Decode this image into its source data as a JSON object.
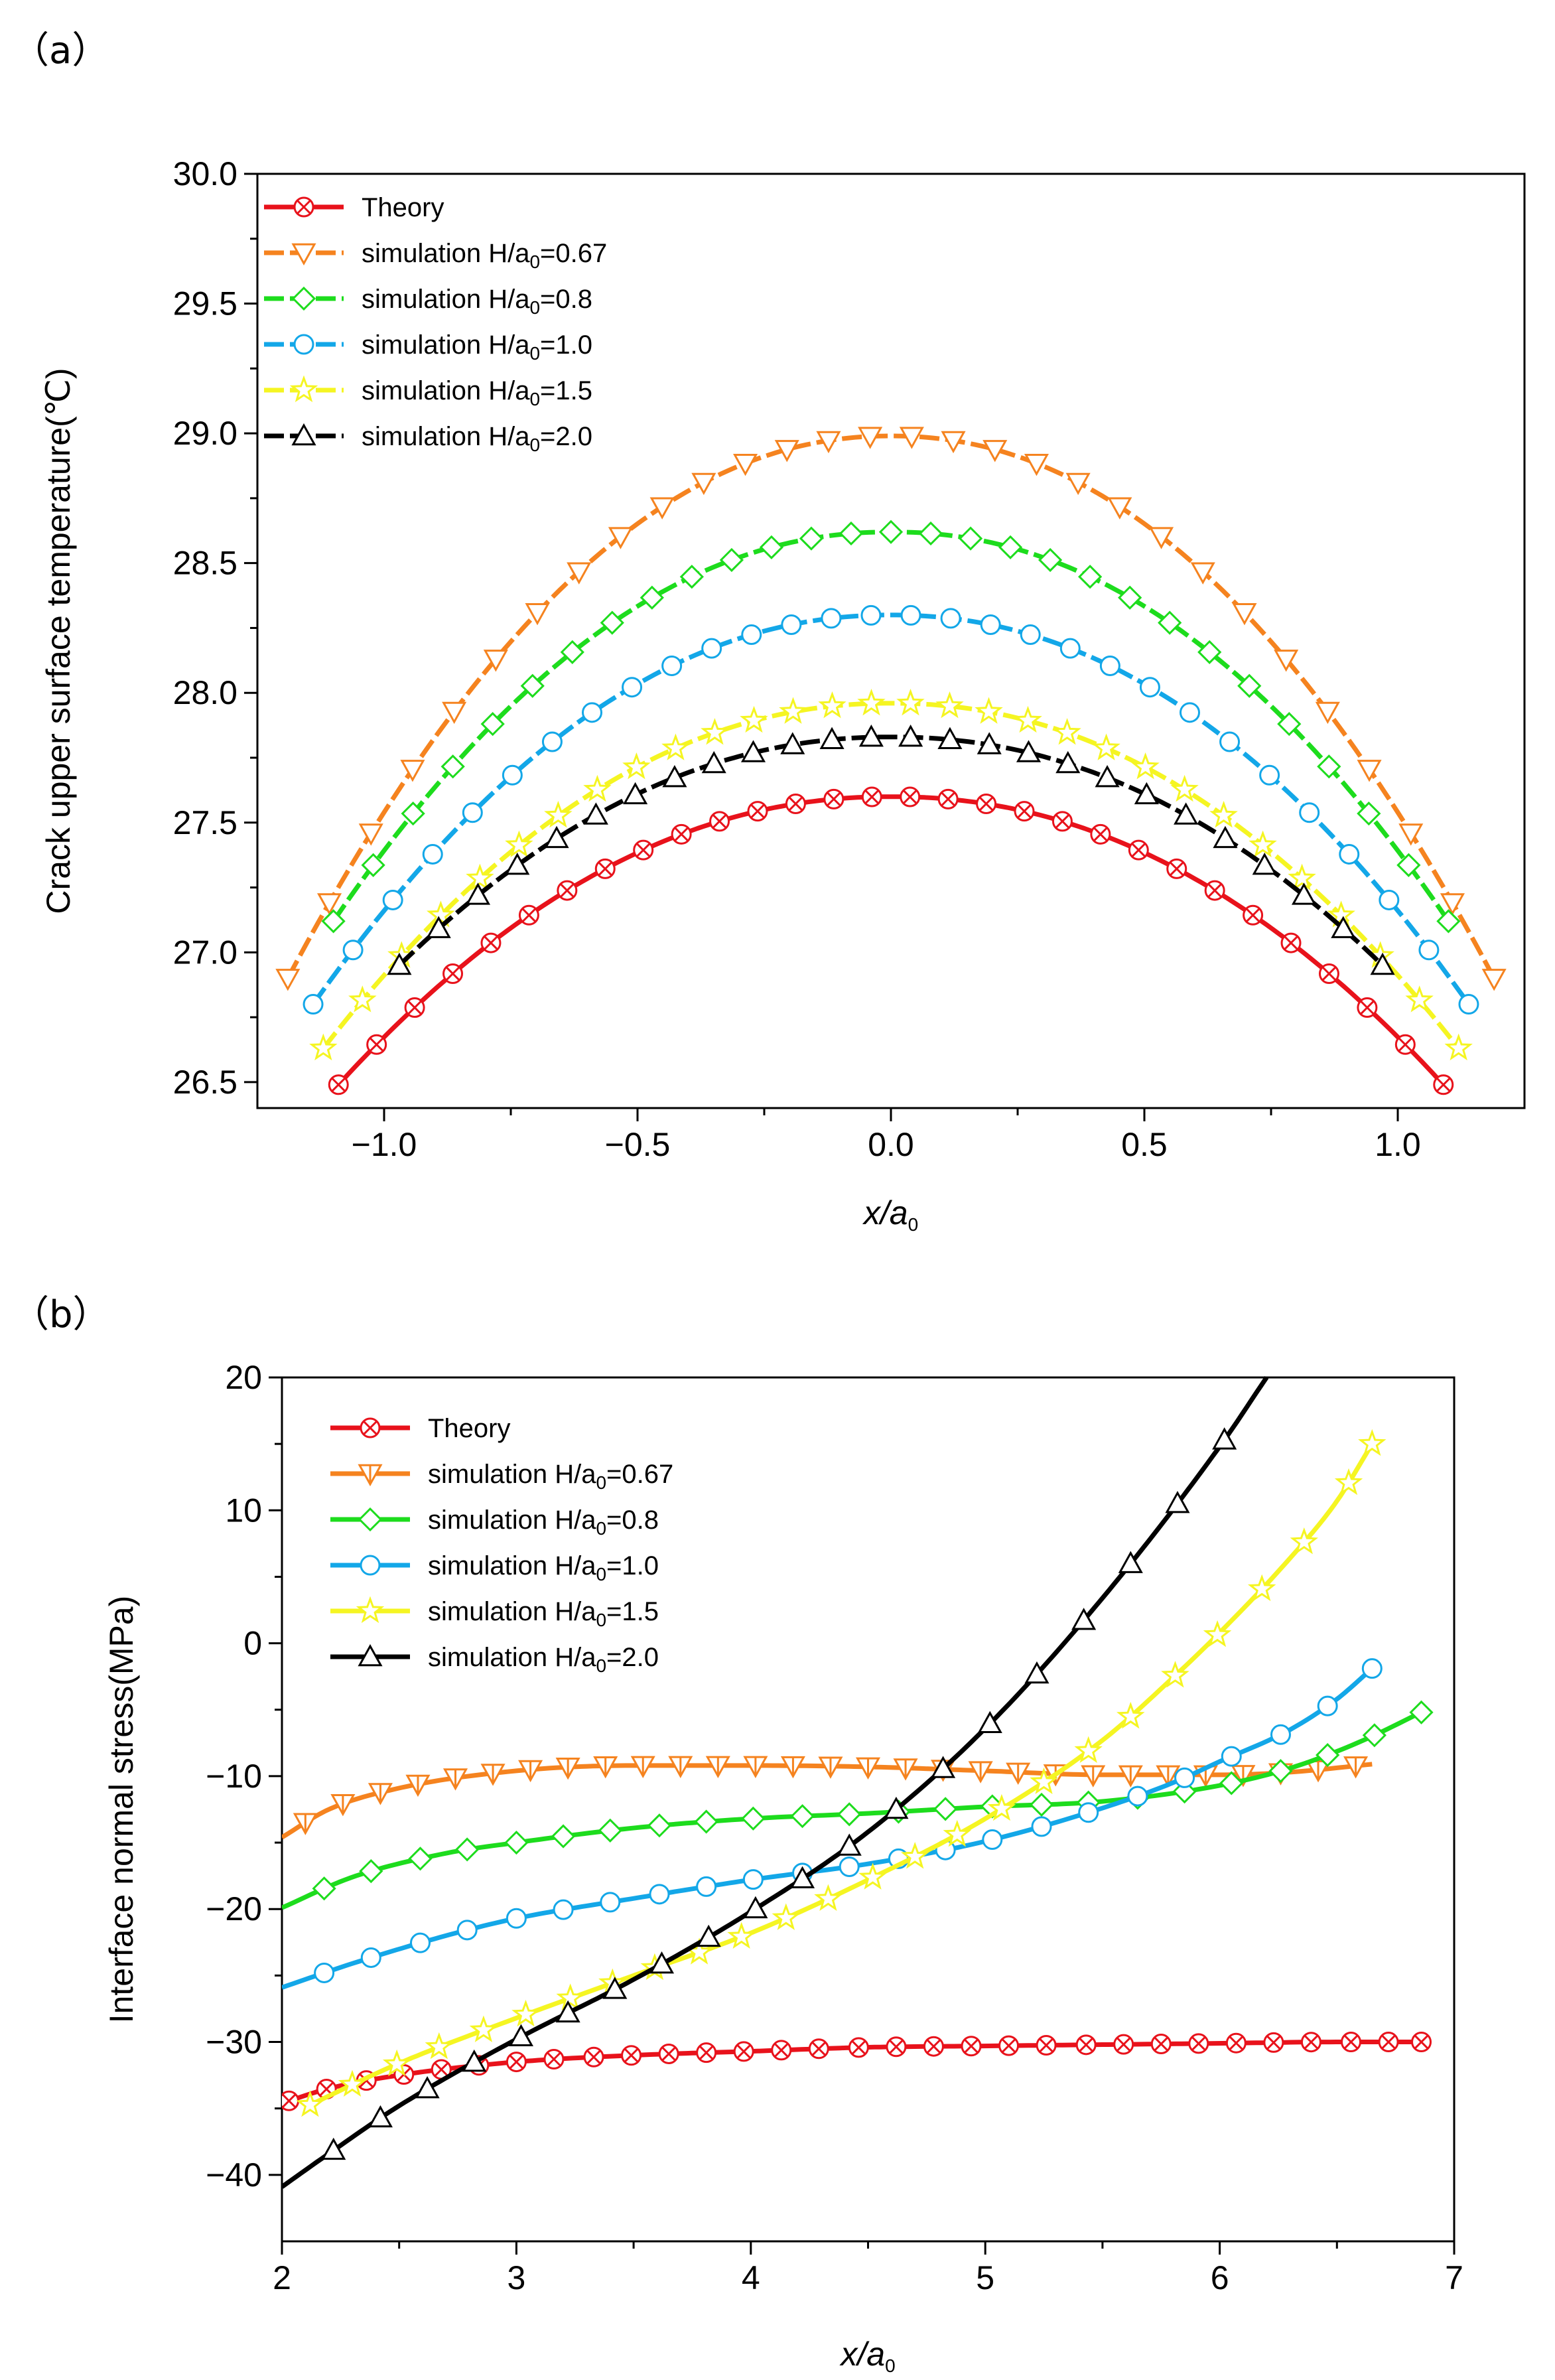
{
  "chart_data": [
    {
      "panel_label": "（a）",
      "type": "line",
      "xlabel_var": "x/a",
      "xlabel_sub": "0",
      "ylabel": "Crack upper surface temperature(℃)",
      "xlim": [
        -1.25,
        1.25
      ],
      "ylim": [
        26.4,
        30.0
      ],
      "xticks": [
        -1.0,
        -0.5,
        0.0,
        0.5,
        1.0
      ],
      "xtick_labels": [
        "−1.0",
        "−0.5",
        "0.0",
        "0.5",
        "1.0"
      ],
      "yticks": [
        26.5,
        27.0,
        27.5,
        28.0,
        28.5,
        29.0,
        29.5,
        30.0
      ],
      "ytick_labels": [
        "26.5",
        "27.0",
        "27.5",
        "28.0",
        "28.5",
        "29.0",
        "29.5",
        "30.0"
      ],
      "legend_position": "top-left",
      "series": [
        {
          "name": "Theory",
          "legend_pre": "Theory",
          "legend_sub": "",
          "legend_post": "",
          "color": "#e8121b",
          "marker": "circle-x",
          "dashed": false,
          "peak": 27.6,
          "half_width": 1.09,
          "end_value": 26.49,
          "n_markers": 30
        },
        {
          "name": "simulation H/a0=0.67",
          "legend_pre": "simulation H/a",
          "legend_sub": "0",
          "legend_post": "=0.67",
          "color": "#f5831f",
          "marker": "tri-down",
          "dashed": true,
          "peak": 28.99,
          "half_width": 1.19,
          "end_value": 26.9,
          "n_markers": 30
        },
        {
          "name": "simulation H/a0=0.8",
          "legend_pre": "simulation H/a",
          "legend_sub": "0",
          "legend_post": "=0.8",
          "color": "#1ddc1d",
          "marker": "diamond",
          "dashed": true,
          "peak": 28.62,
          "half_width": 1.1,
          "end_value": 27.12,
          "n_markers": 29
        },
        {
          "name": "simulation H/a0=1.0",
          "legend_pre": "simulation H/a",
          "legend_sub": "0",
          "legend_post": "=1.0",
          "color": "#13a7e8",
          "marker": "circle",
          "dashed": true,
          "peak": 28.3,
          "half_width": 1.14,
          "end_value": 26.8,
          "n_markers": 30
        },
        {
          "name": "simulation H/a0=1.5",
          "legend_pre": "simulation H/a",
          "legend_sub": "0",
          "legend_post": "=1.5",
          "color": "#f5f522",
          "marker": "star",
          "dashed": true,
          "peak": 27.96,
          "half_width": 1.12,
          "end_value": 26.63,
          "n_markers": 30
        },
        {
          "name": "simulation H/a0=2.0",
          "legend_pre": "simulation H/a",
          "legend_sub": "0",
          "legend_post": "=2.0",
          "color": "#000000",
          "marker": "tri-up",
          "dashed": true,
          "peak": 27.83,
          "half_width": 0.97,
          "end_value": 26.95,
          "n_markers": 26
        }
      ]
    },
    {
      "panel_label": "（b）",
      "type": "line",
      "xlabel_var": "x/a",
      "xlabel_sub": "0",
      "ylabel": "Interface normal stress(MPa)",
      "xlim": [
        2,
        7
      ],
      "ylim": [
        -45,
        20
      ],
      "xticks": [
        2,
        3,
        4,
        5,
        6,
        7
      ],
      "xtick_labels": [
        "2",
        "3",
        "4",
        "5",
        "6",
        "7"
      ],
      "yticks": [
        -40,
        -30,
        -20,
        -10,
        0,
        10,
        20
      ],
      "ytick_labels": [
        "−40",
        "−30",
        "−20",
        "−10",
        "0",
        "10",
        "20"
      ],
      "legend_position": "top-left",
      "series": [
        {
          "name": "Theory",
          "legend_pre": "Theory",
          "legend_sub": "",
          "legend_post": "",
          "color": "#e8121b",
          "marker": "circle-x",
          "dashed": false,
          "points": [
            [
              2.0,
              -34.6
            ],
            [
              2.2,
              -33.5
            ],
            [
              2.5,
              -32.5
            ],
            [
              3.0,
              -31.5
            ],
            [
              3.5,
              -31.0
            ],
            [
              4.0,
              -30.7
            ],
            [
              4.5,
              -30.4
            ],
            [
              5.0,
              -30.3
            ],
            [
              5.5,
              -30.2
            ],
            [
              6.0,
              -30.1
            ],
            [
              6.5,
              -30.0
            ],
            [
              6.86,
              -30.0
            ]
          ],
          "marker_x": [
            2.03,
            2.19,
            2.36,
            2.52,
            2.68,
            2.84,
            3.0,
            3.16,
            3.33,
            3.49,
            3.65,
            3.81,
            3.97,
            4.13,
            4.29,
            4.46,
            4.62,
            4.78,
            4.94,
            5.1,
            5.26,
            5.43,
            5.59,
            5.75,
            5.91,
            6.07,
            6.23,
            6.39,
            6.56,
            6.72,
            6.86
          ]
        },
        {
          "name": "simulation H/a0=0.67",
          "legend_pre": "simulation H/a",
          "legend_sub": "0",
          "legend_post": "=0.67",
          "color": "#f5831f",
          "marker": "tri-down-bar",
          "dashed": false,
          "points": [
            [
              2.0,
              -14.6
            ],
            [
              2.2,
              -12.5
            ],
            [
              2.5,
              -10.9
            ],
            [
              3.0,
              -9.6
            ],
            [
              3.5,
              -9.2
            ],
            [
              4.0,
              -9.2
            ],
            [
              4.5,
              -9.3
            ],
            [
              5.0,
              -9.6
            ],
            [
              5.5,
              -9.9
            ],
            [
              6.0,
              -9.9
            ],
            [
              6.3,
              -9.7
            ],
            [
              6.65,
              -9.1
            ]
          ],
          "marker_x": [
            2.1,
            2.26,
            2.42,
            2.58,
            2.74,
            2.9,
            3.06,
            3.22,
            3.38,
            3.54,
            3.7,
            3.86,
            4.02,
            4.18,
            4.34,
            4.5,
            4.66,
            4.82,
            4.98,
            5.14,
            5.3,
            5.46,
            5.62,
            5.78,
            5.94,
            6.1,
            6.26,
            6.42,
            6.58
          ]
        },
        {
          "name": "simulation H/a0=0.8",
          "legend_pre": "simulation H/a",
          "legend_sub": "0",
          "legend_post": "=0.8",
          "color": "#1ddc1d",
          "marker": "diamond",
          "dashed": false,
          "points": [
            [
              2.0,
              -19.9
            ],
            [
              2.3,
              -17.6
            ],
            [
              2.7,
              -15.8
            ],
            [
              3.0,
              -15.0
            ],
            [
              3.5,
              -13.9
            ],
            [
              4.0,
              -13.2
            ],
            [
              4.5,
              -12.8
            ],
            [
              5.0,
              -12.3
            ],
            [
              5.5,
              -11.9
            ],
            [
              6.0,
              -10.7
            ],
            [
              6.3,
              -9.4
            ],
            [
              6.6,
              -7.4
            ],
            [
              6.86,
              -5.2
            ]
          ],
          "marker_x": [
            2.18,
            2.38,
            2.59,
            2.79,
            3.0,
            3.2,
            3.4,
            3.61,
            3.81,
            4.01,
            4.22,
            4.42,
            4.63,
            4.83,
            5.03,
            5.24,
            5.44,
            5.65,
            5.85,
            6.05,
            6.26,
            6.46,
            6.66,
            6.86
          ]
        },
        {
          "name": "simulation H/a0=1.0",
          "legend_pre": "simulation H/a",
          "legend_sub": "0",
          "legend_post": "=1.0",
          "color": "#13a7e8",
          "marker": "circle",
          "dashed": false,
          "points": [
            [
              2.0,
              -25.9
            ],
            [
              2.3,
              -24.1
            ],
            [
              2.7,
              -22.0
            ],
            [
              3.0,
              -20.7
            ],
            [
              3.5,
              -19.2
            ],
            [
              4.0,
              -17.8
            ],
            [
              4.5,
              -16.6
            ],
            [
              5.0,
              -14.9
            ],
            [
              5.5,
              -12.4
            ],
            [
              5.8,
              -10.5
            ],
            [
              6.0,
              -8.9
            ],
            [
              6.3,
              -6.5
            ],
            [
              6.5,
              -4.2
            ],
            [
              6.65,
              -1.9
            ]
          ],
          "marker_x": [
            2.18,
            2.38,
            2.59,
            2.79,
            3.0,
            3.2,
            3.4,
            3.61,
            3.81,
            4.01,
            4.22,
            4.42,
            4.63,
            4.83,
            5.03,
            5.24,
            5.44,
            5.65,
            5.85,
            6.05,
            6.26,
            6.46,
            6.65
          ]
        },
        {
          "name": "simulation H/a0=1.5",
          "legend_pre": "simulation H/a",
          "legend_sub": "0",
          "legend_post": "=1.5",
          "color": "#f5f522",
          "marker": "star",
          "dashed": false,
          "points": [
            [
              2.1,
              -34.9
            ],
            [
              2.5,
              -31.6
            ],
            [
              3.0,
              -28.2
            ],
            [
              3.5,
              -25.0
            ],
            [
              4.0,
              -21.8
            ],
            [
              4.5,
              -17.8
            ],
            [
              5.0,
              -13.2
            ],
            [
              5.5,
              -7.3
            ],
            [
              5.8,
              -2.6
            ],
            [
              6.0,
              0.8
            ],
            [
              6.3,
              6.4
            ],
            [
              6.5,
              10.7
            ],
            [
              6.65,
              15.0
            ]
          ],
          "marker_x": [
            2.12,
            2.3,
            2.49,
            2.67,
            2.86,
            3.04,
            3.23,
            3.41,
            3.59,
            3.78,
            3.96,
            4.15,
            4.33,
            4.52,
            4.7,
            4.88,
            5.07,
            5.25,
            5.44,
            5.62,
            5.81,
            5.99,
            6.18,
            6.36,
            6.55,
            6.65
          ]
        },
        {
          "name": "simulation H/a0=2.0",
          "legend_pre": "simulation H/a",
          "legend_sub": "0",
          "legend_post": "=2.0",
          "color": "#000000",
          "marker": "tri-up",
          "dashed": false,
          "points": [
            [
              2.0,
              -40.9
            ],
            [
              2.2,
              -38.4
            ],
            [
              2.5,
              -34.8
            ],
            [
              3.0,
              -29.8
            ],
            [
              3.5,
              -25.3
            ],
            [
              4.0,
              -20.2
            ],
            [
              4.5,
              -14.2
            ],
            [
              5.0,
              -6.4
            ],
            [
              5.5,
              3.4
            ],
            [
              6.0,
              14.8
            ],
            [
              6.2,
              20.0
            ]
          ],
          "marker_x": [
            2.22,
            2.42,
            2.62,
            2.82,
            3.02,
            3.22,
            3.42,
            3.62,
            3.82,
            4.02,
            4.22,
            4.42,
            4.62,
            4.82,
            5.02,
            5.22,
            5.42,
            5.62,
            5.82,
            6.02
          ]
        }
      ]
    }
  ]
}
